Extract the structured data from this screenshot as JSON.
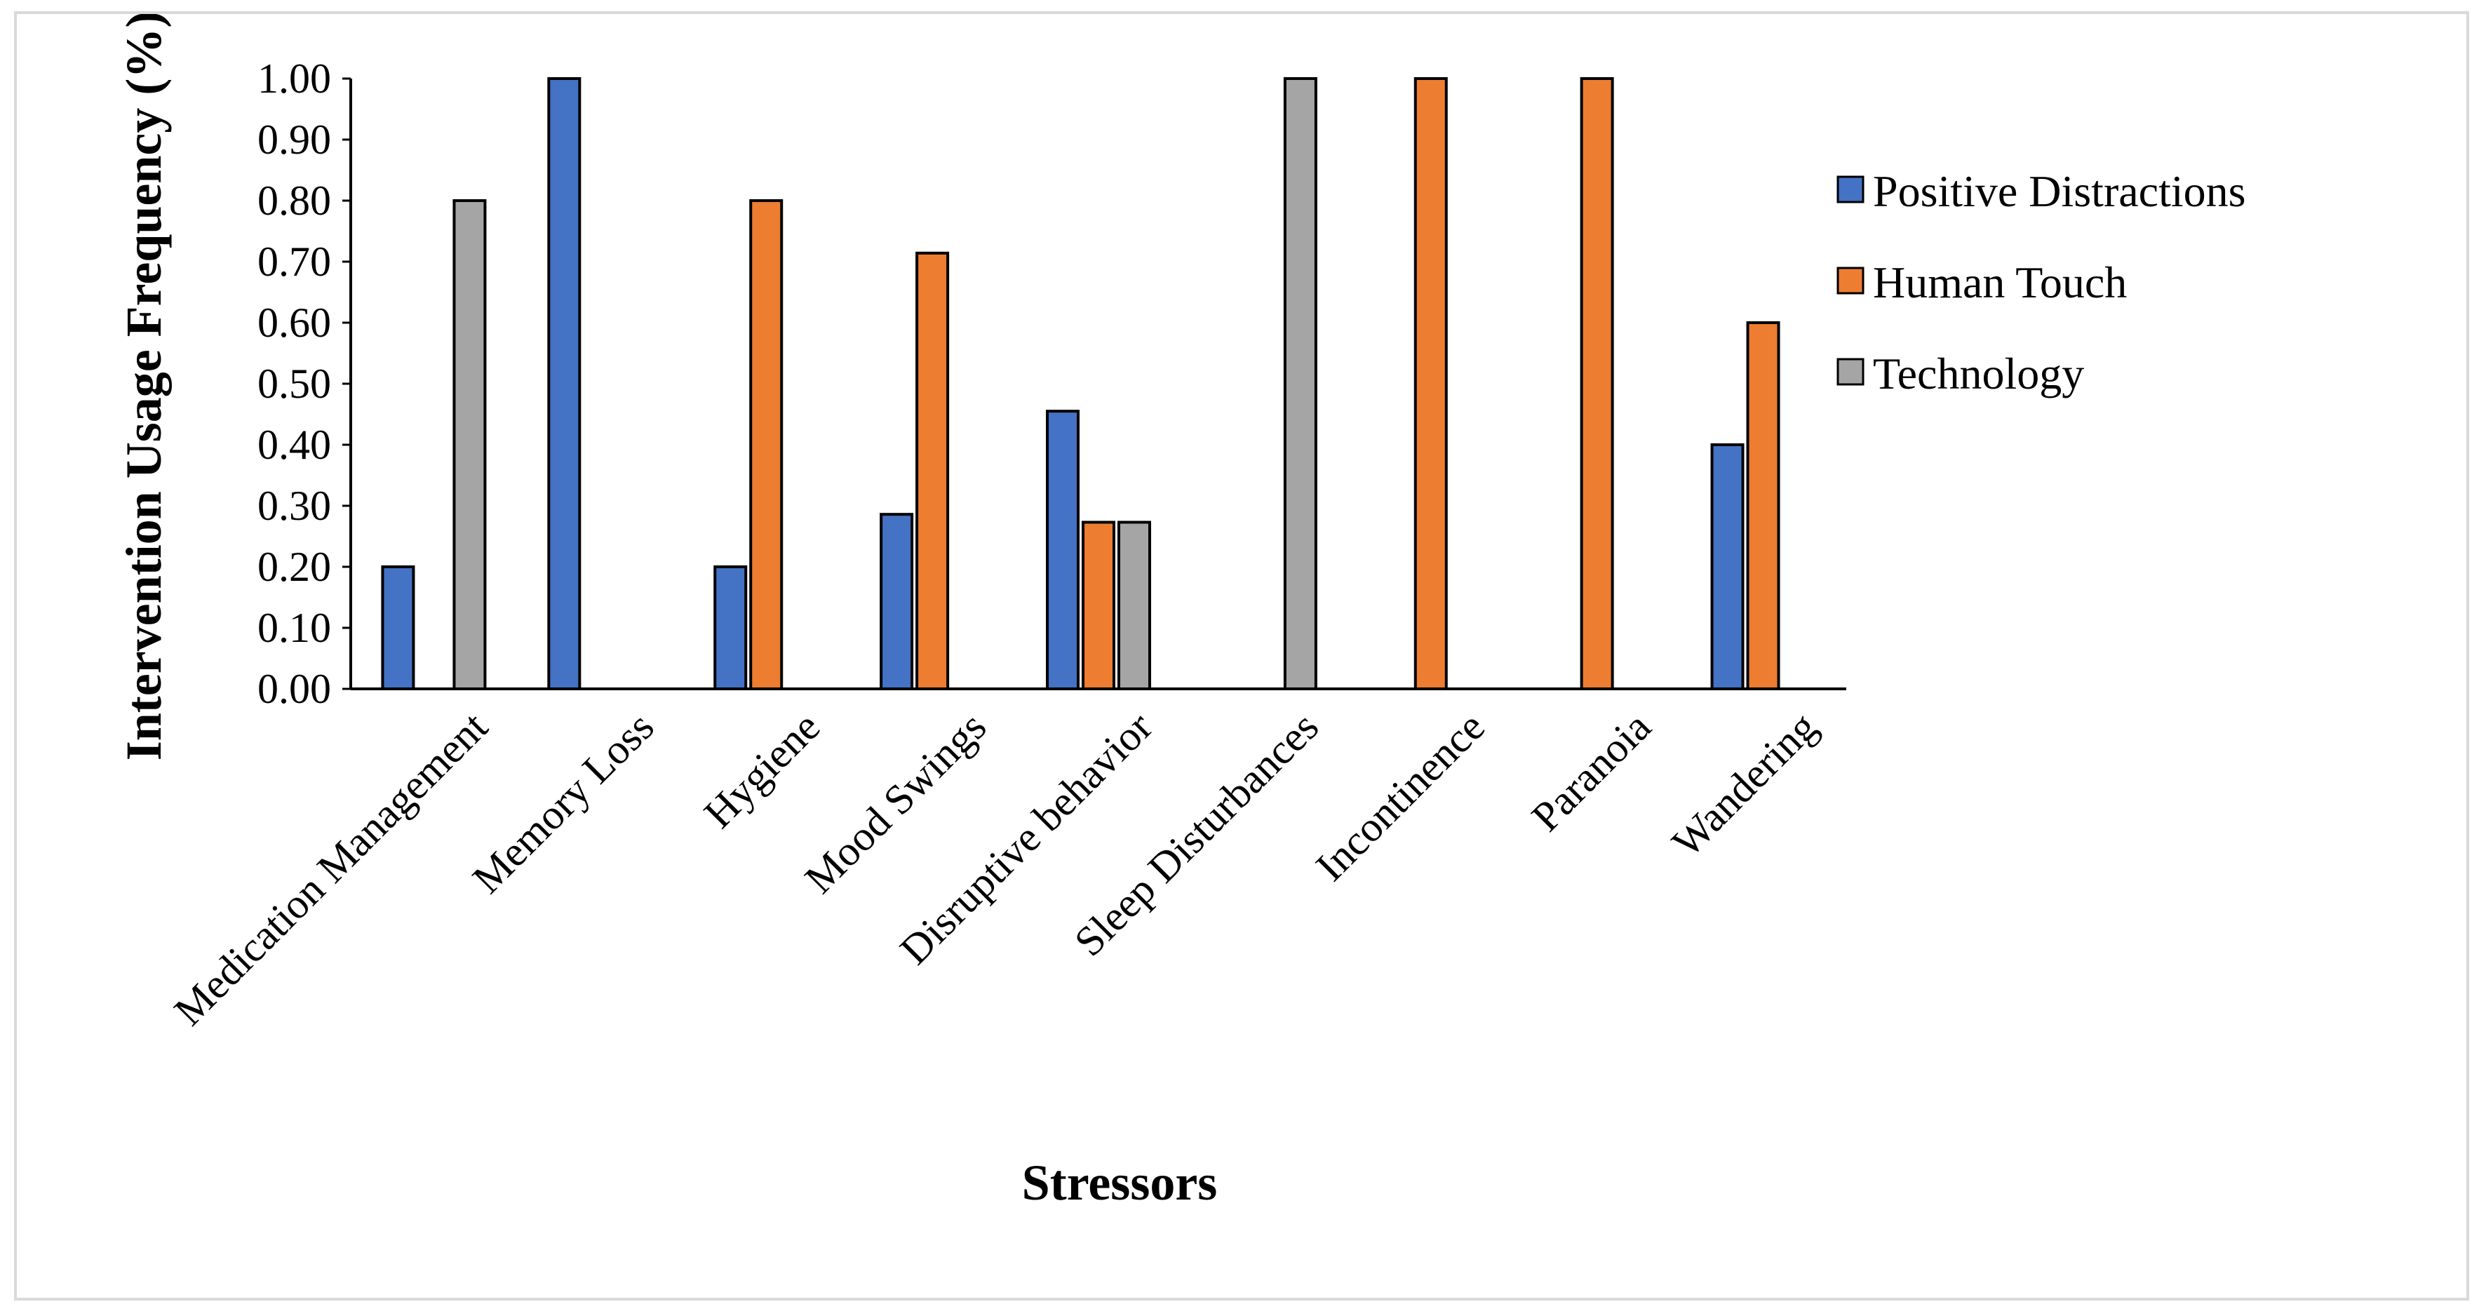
{
  "chart_data": {
    "type": "bar",
    "title": "",
    "xlabel": "Stressors",
    "ylabel": "Intervention Usage Frequency (%)",
    "ylim": [
      0,
      1
    ],
    "ytick_step": 0.1,
    "ytick_decimals": 2,
    "grid": false,
    "legend_position": "right",
    "categories": [
      "Medication Management",
      "Memory Loss",
      "Hygiene",
      "Mood Swings",
      "Disruptive behavior",
      "Sleep Disturbances",
      "Incontinence",
      "Paranoia",
      "Wandering"
    ],
    "series": [
      {
        "name": "Positive Distractions",
        "color": "#4472c4",
        "values": [
          0.2,
          1.0,
          0.2,
          0.286,
          0.455,
          0,
          0,
          0,
          0.4
        ]
      },
      {
        "name": "Human Touch",
        "color": "#ed7d31",
        "values": [
          0,
          0,
          0.8,
          0.714,
          0.273,
          0,
          1.0,
          1.0,
          0.6
        ]
      },
      {
        "name": "Technology",
        "color": "#a5a5a5",
        "values": [
          0.8,
          0,
          0,
          0,
          0.273,
          1.0,
          0,
          0,
          0
        ]
      }
    ]
  }
}
